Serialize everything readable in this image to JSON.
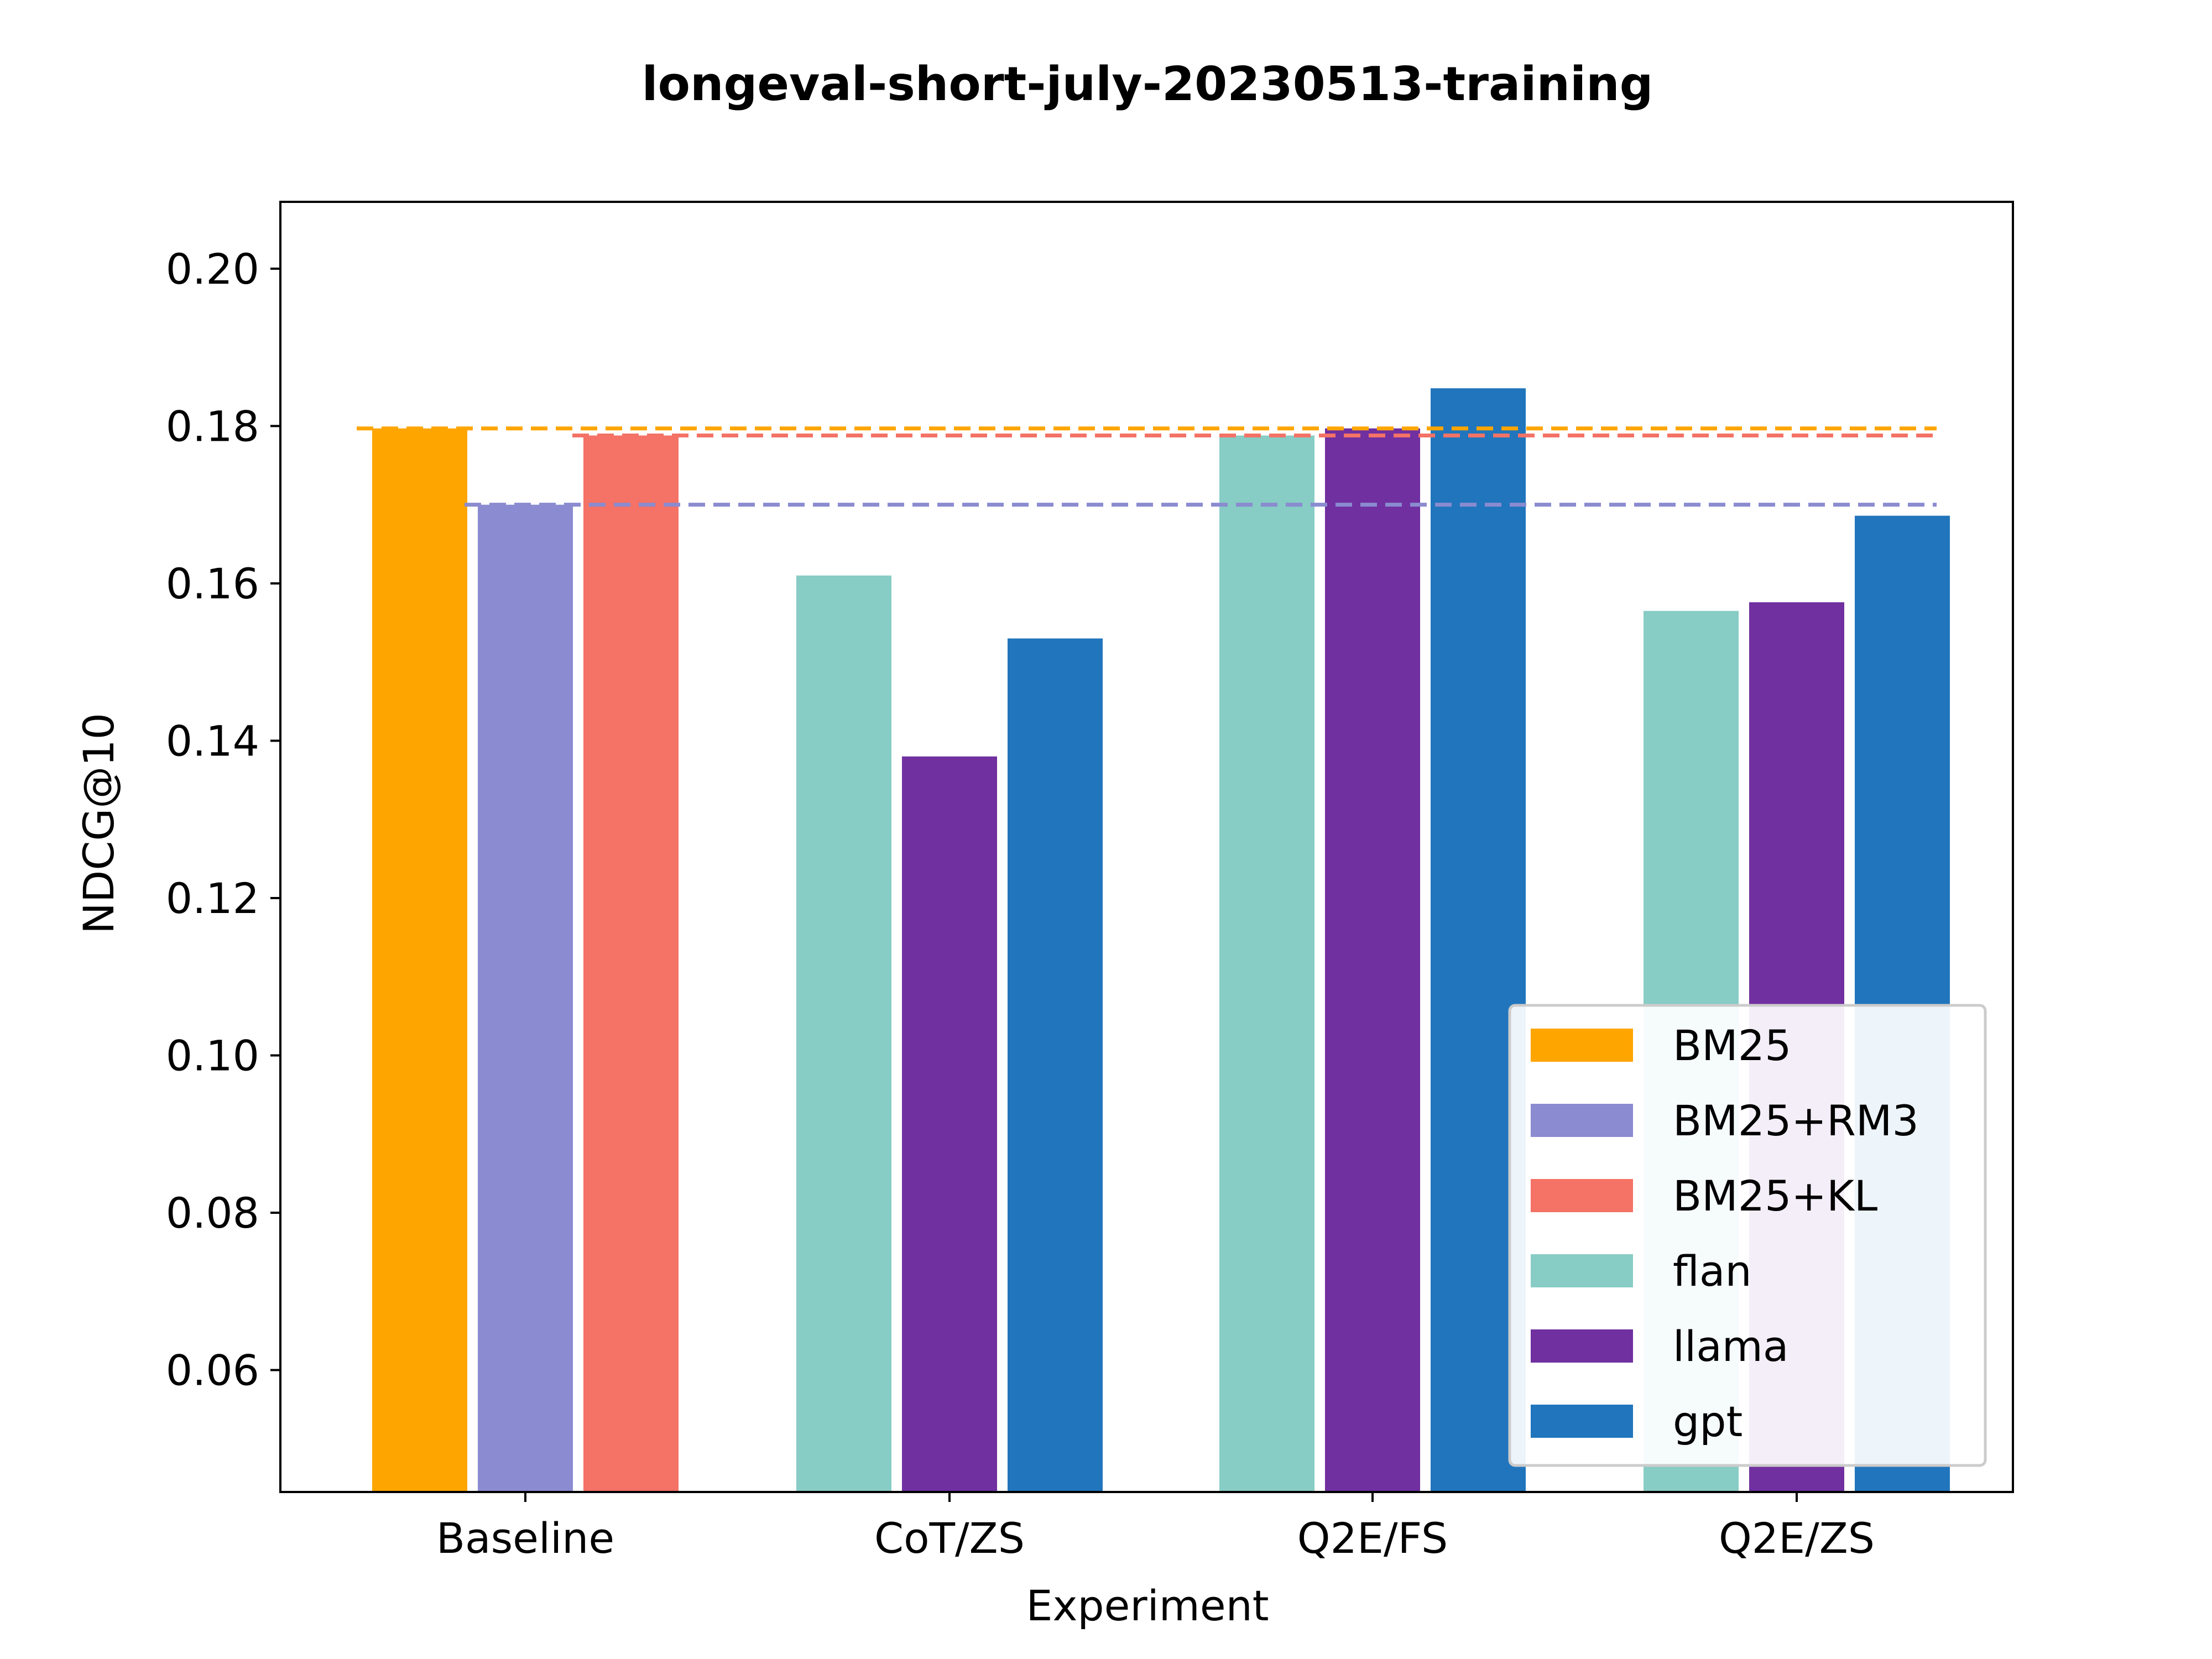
{
  "chart_data": {
    "type": "bar",
    "title": "longeval-short-july-20230513-training",
    "xlabel": "Experiment",
    "ylabel": "NDCG@10",
    "ylim": [
      0.0445,
      0.2085
    ],
    "yticks": [
      "0.06",
      "0.08",
      "0.10",
      "0.12",
      "0.14",
      "0.16",
      "0.18",
      "0.20"
    ],
    "grid": false,
    "legend_position": "bottom-right",
    "groups": [
      {
        "category": "Baseline",
        "bars": [
          {
            "series": "BM25",
            "value": 0.1797
          },
          {
            "series": "BM25+RM3",
            "value": 0.17
          },
          {
            "series": "BM25+KL",
            "value": 0.1788
          }
        ]
      },
      {
        "category": "CoT/ZS",
        "bars": [
          {
            "series": "flan",
            "value": 0.161
          },
          {
            "series": "llama",
            "value": 0.138
          },
          {
            "series": "gpt",
            "value": 0.153
          }
        ]
      },
      {
        "category": "Q2E/FS",
        "bars": [
          {
            "series": "flan",
            "value": 0.1788
          },
          {
            "series": "llama",
            "value": 0.1797
          },
          {
            "series": "gpt",
            "value": 0.1848
          }
        ]
      },
      {
        "category": "Q2E/ZS",
        "bars": [
          {
            "series": "flan",
            "value": 0.1565
          },
          {
            "series": "llama",
            "value": 0.1576
          },
          {
            "series": "gpt",
            "value": 0.1686
          }
        ]
      }
    ],
    "reference_lines": [
      {
        "series": "BM25",
        "value": 0.1797,
        "style": "dashed"
      },
      {
        "series": "BM25+KL",
        "value": 0.1788,
        "style": "dashed"
      },
      {
        "series": "BM25+RM3",
        "value": 0.17,
        "style": "dashed"
      }
    ],
    "legend": [
      {
        "name": "BM25",
        "color": "#FFA500"
      },
      {
        "name": "BM25+RM3",
        "color": "#8A8BD0"
      },
      {
        "name": "BM25+KL",
        "color": "#F47266"
      },
      {
        "name": "flan",
        "color": "#87CCC5"
      },
      {
        "name": "llama",
        "color": "#7030A0"
      },
      {
        "name": "gpt",
        "color": "#2175BC"
      }
    ]
  }
}
